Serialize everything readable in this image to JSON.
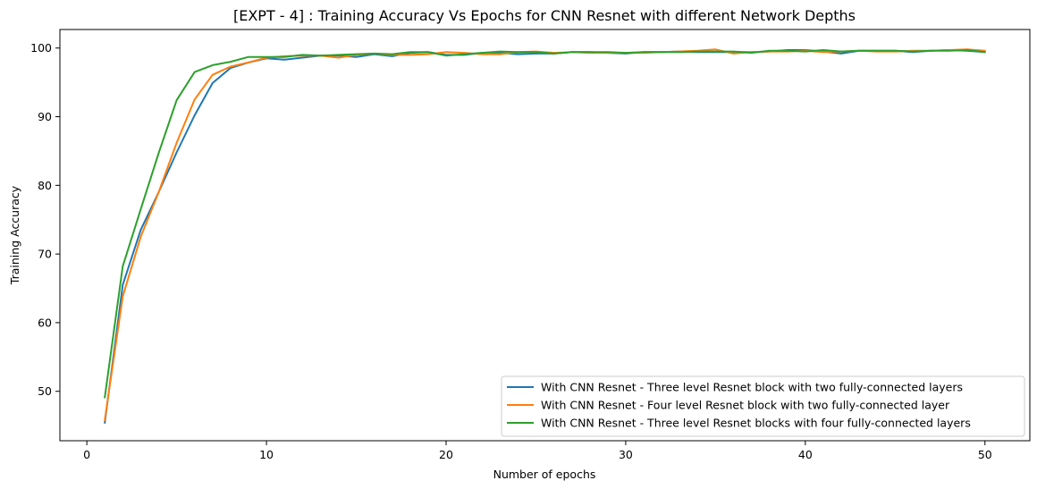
{
  "chart_data": {
    "type": "line",
    "title": "[EXPT - 4] : Training Accuracy Vs Epochs for CNN Resnet with different Network Depths",
    "xlabel": "Number of epochs",
    "ylabel": "Training Accuracy",
    "xlim": [
      -1.5,
      52.5
    ],
    "ylim": [
      42.8,
      102.7
    ],
    "xticks": [
      0,
      10,
      20,
      30,
      40,
      50
    ],
    "yticks": [
      50,
      60,
      70,
      80,
      90,
      100
    ],
    "grid": false,
    "legend_position": "lower-right",
    "x": [
      1,
      2,
      3,
      4,
      5,
      6,
      7,
      8,
      9,
      10,
      11,
      12,
      13,
      14,
      15,
      16,
      17,
      18,
      19,
      20,
      21,
      22,
      23,
      24,
      25,
      26,
      27,
      28,
      29,
      30,
      31,
      32,
      33,
      34,
      35,
      36,
      37,
      38,
      39,
      40,
      41,
      42,
      43,
      44,
      45,
      46,
      47,
      48,
      49,
      50
    ],
    "series": [
      {
        "name": "With CNN Resnet - Three level Resnet block with two fully-connected layers",
        "color": "#1f77b4",
        "values": [
          45.4,
          65.5,
          73.5,
          79.0,
          84.8,
          90.2,
          94.9,
          97.1,
          97.9,
          98.5,
          98.3,
          98.6,
          98.9,
          98.9,
          98.7,
          99.1,
          98.8,
          99.3,
          99.4,
          99.0,
          99.0,
          99.3,
          99.3,
          99.1,
          99.2,
          99.2,
          99.4,
          99.4,
          99.3,
          99.2,
          99.4,
          99.4,
          99.5,
          99.4,
          99.4,
          99.4,
          99.4,
          99.5,
          99.7,
          99.7,
          99.5,
          99.2,
          99.6,
          99.6,
          99.6,
          99.4,
          99.6,
          99.7,
          99.6,
          99.4
        ]
      },
      {
        "name": "With CNN Resnet - Four level Resnet block with two fully-connected layer",
        "color": "#ff7f0e",
        "values": [
          45.8,
          63.8,
          72.5,
          79.0,
          86.2,
          92.5,
          96.1,
          97.3,
          97.9,
          98.6,
          98.8,
          98.9,
          98.9,
          98.6,
          99.0,
          99.2,
          99.0,
          99.0,
          99.1,
          99.4,
          99.3,
          99.1,
          99.1,
          99.4,
          99.5,
          99.3,
          99.4,
          99.3,
          99.3,
          99.3,
          99.3,
          99.4,
          99.5,
          99.6,
          99.8,
          99.2,
          99.4,
          99.5,
          99.5,
          99.6,
          99.4,
          99.5,
          99.6,
          99.5,
          99.5,
          99.6,
          99.6,
          99.7,
          99.8,
          99.6
        ]
      },
      {
        "name": "With CNN Resnet - Three level Resnet blocks with four fully-connected layers",
        "color": "#2ca02c",
        "values": [
          49.1,
          68.2,
          76.5,
          84.7,
          92.4,
          96.5,
          97.5,
          98.0,
          98.7,
          98.7,
          98.7,
          99.0,
          98.9,
          99.0,
          99.1,
          99.2,
          99.1,
          99.4,
          99.4,
          98.9,
          99.1,
          99.3,
          99.5,
          99.4,
          99.4,
          99.2,
          99.4,
          99.4,
          99.4,
          99.3,
          99.4,
          99.4,
          99.4,
          99.5,
          99.5,
          99.5,
          99.3,
          99.6,
          99.6,
          99.5,
          99.7,
          99.5,
          99.6,
          99.6,
          99.6,
          99.5,
          99.6,
          99.6,
          99.7,
          99.4
        ]
      }
    ]
  }
}
